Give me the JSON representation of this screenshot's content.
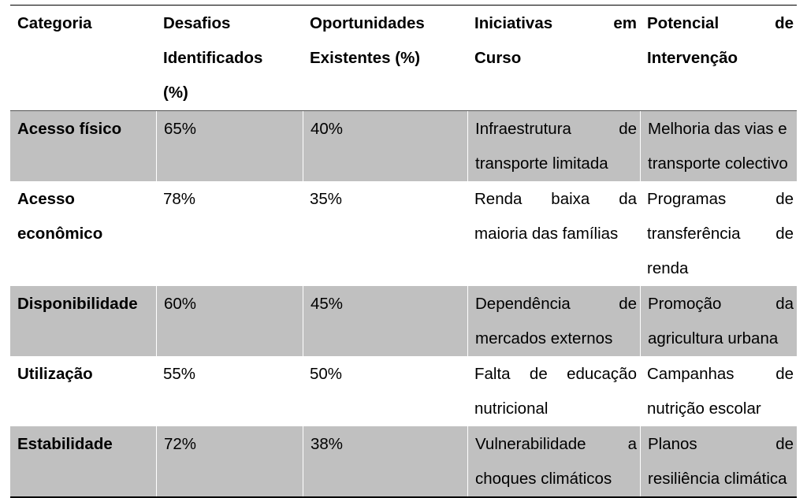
{
  "table": {
    "headers": {
      "categoria": "Categoria",
      "desafios": [
        "Desafios",
        "Identificados",
        "(%)"
      ],
      "oportunidades": [
        "Oportunidades",
        "Existentes (%)"
      ],
      "iniciativas": [
        "Iniciativas",
        "em",
        "Curso"
      ],
      "potencial": [
        "Potencial",
        "de",
        "Intervenção"
      ]
    },
    "rows": [
      {
        "categoria": [
          "Acesso físico"
        ],
        "desafios": "65%",
        "oportunidades": "40%",
        "iniciativas": [
          [
            "Infraestrutura",
            "de"
          ],
          [
            "transporte limitada"
          ]
        ],
        "potencial": [
          [
            "Melhoria das vias e"
          ],
          [
            "transporte colectivo"
          ]
        ]
      },
      {
        "categoria": [
          "Acesso",
          "econômico"
        ],
        "desafios": "78%",
        "oportunidades": "35%",
        "iniciativas": [
          [
            "Renda",
            "baixa",
            "da"
          ],
          [
            "maioria das famílias"
          ]
        ],
        "potencial": [
          [
            "Programas",
            "de"
          ],
          [
            "transferência",
            "de"
          ],
          [
            "renda"
          ]
        ]
      },
      {
        "categoria": [
          "Disponibilidade"
        ],
        "desafios": "60%",
        "oportunidades": "45%",
        "iniciativas": [
          [
            "Dependência",
            "de"
          ],
          [
            "mercados externos"
          ]
        ],
        "potencial": [
          [
            "Promoção",
            "da"
          ],
          [
            "agricultura urbana"
          ]
        ]
      },
      {
        "categoria": [
          "Utilização"
        ],
        "desafios": "55%",
        "oportunidades": "50%",
        "iniciativas": [
          [
            "Falta",
            "de",
            "educação"
          ],
          [
            "nutricional"
          ]
        ],
        "potencial": [
          [
            "Campanhas",
            "de"
          ],
          [
            "nutrição escolar"
          ]
        ]
      },
      {
        "categoria": [
          "Estabilidade"
        ],
        "desafios": "72%",
        "oportunidades": "38%",
        "iniciativas": [
          [
            "Vulnerabilidade",
            "a"
          ],
          [
            "choques climáticos"
          ]
        ],
        "potencial": [
          [
            "Planos",
            "de"
          ],
          [
            "resiliência climática"
          ]
        ]
      }
    ]
  },
  "colors": {
    "shade": "#c0c0c0",
    "rule": "#000000"
  }
}
